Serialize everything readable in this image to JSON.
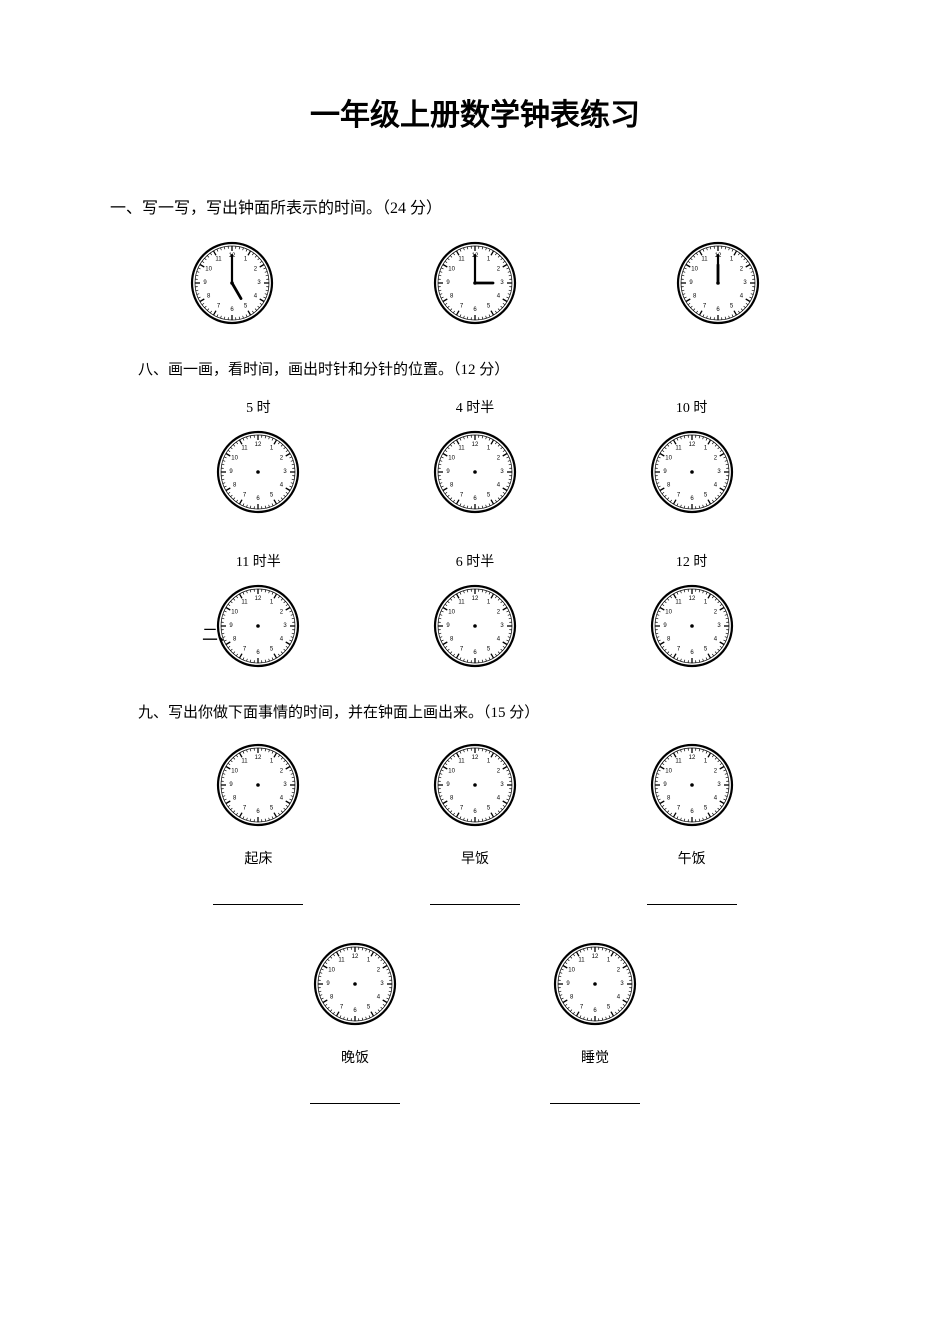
{
  "title": "一年级上册数学钟表练习",
  "section1": {
    "heading": "一、写一写，写出钟面所表示的时间。（24 分）",
    "clocks": [
      {
        "hour": 5,
        "minute": 0
      },
      {
        "hour": 3,
        "minute": 0
      },
      {
        "hour": 12,
        "minute": 0
      }
    ]
  },
  "side_marker": "二、",
  "section8": {
    "heading": "八、画一画，看时间，画出时针和分针的位置。（12 分）",
    "row1": [
      {
        "label": "5 时"
      },
      {
        "label": "4 时半"
      },
      {
        "label": "10 时"
      }
    ],
    "row2": [
      {
        "label": "11 时半"
      },
      {
        "label": "6 时半"
      },
      {
        "label": "12 时"
      }
    ]
  },
  "section9": {
    "heading": "九、写出你做下面事情的时间，并在钟面上画出来。（15 分）",
    "row1": [
      {
        "label": "起床"
      },
      {
        "label": "早饭"
      },
      {
        "label": "午饭"
      }
    ],
    "row2": [
      {
        "label": "晚饭"
      },
      {
        "label": "睡觉"
      }
    ]
  },
  "clock_style": {
    "radius": 40,
    "stroke": "#000000",
    "bg": "#ffffff",
    "num_fontsize": 6,
    "tick_stroke_width": 1,
    "rim_stroke_width": 2.2,
    "hour_hand_len": 18,
    "minute_hand_len": 28,
    "hand_stroke_width": 2.2
  }
}
